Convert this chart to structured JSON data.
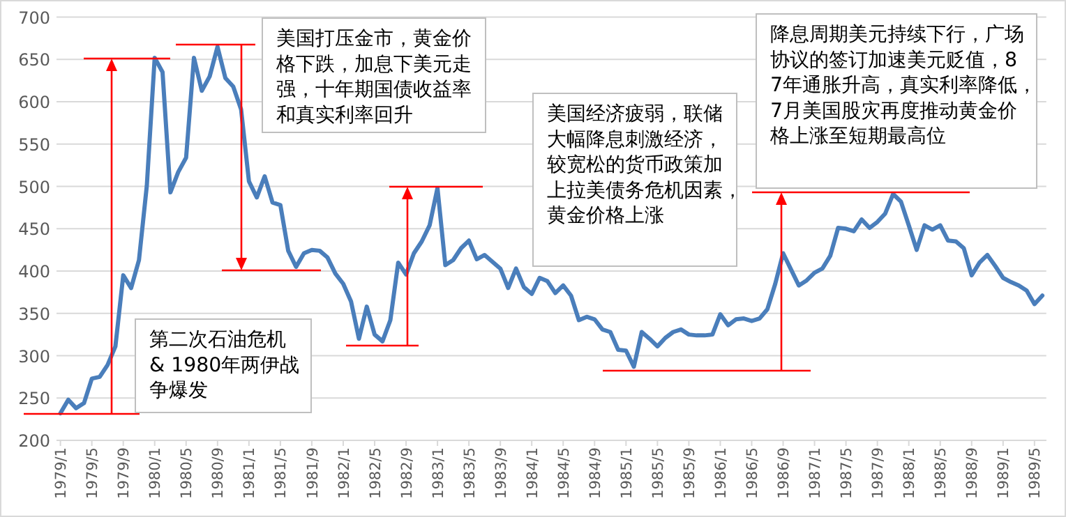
{
  "chart_data": {
    "type": "line",
    "categories": [
      "1979/1",
      null,
      null,
      null,
      "1979/5",
      null,
      null,
      null,
      "1979/9",
      null,
      null,
      null,
      "1980/1",
      null,
      null,
      null,
      "1980/5",
      null,
      null,
      null,
      "1980/9",
      null,
      null,
      null,
      "1981/1",
      null,
      null,
      null,
      "1981/5",
      null,
      null,
      null,
      "1981/9",
      null,
      null,
      null,
      "1982/1",
      null,
      null,
      null,
      "1982/5",
      null,
      null,
      null,
      "1982/9",
      null,
      null,
      null,
      "1983/1",
      null,
      null,
      null,
      "1983/5",
      null,
      null,
      null,
      "1983/9",
      null,
      null,
      null,
      "1984/1",
      null,
      null,
      null,
      "1984/5",
      null,
      null,
      null,
      "1984/9",
      null,
      null,
      null,
      "1985/1",
      null,
      null,
      null,
      "1985/5",
      null,
      null,
      null,
      "1985/9",
      null,
      null,
      null,
      "1986/1",
      null,
      null,
      null,
      "1986/5",
      null,
      null,
      null,
      "1986/9",
      null,
      null,
      null,
      "1987/1",
      null,
      null,
      null,
      "1987/5",
      null,
      null,
      null,
      "1987/9",
      null,
      null,
      null,
      "1988/1",
      null,
      null,
      null,
      "1988/5",
      null,
      null,
      null,
      "1988/9",
      null,
      null,
      null,
      "1989/1",
      null,
      null,
      null,
      "1989/5",
      null
    ],
    "values": [
      232,
      248,
      238,
      244,
      273,
      275,
      289,
      311,
      395,
      380,
      413,
      501,
      652,
      635,
      493,
      517,
      534,
      652,
      613,
      630,
      665,
      628,
      618,
      591,
      506,
      487,
      512,
      481,
      478,
      424,
      405,
      421,
      425,
      424,
      416,
      397,
      385,
      364,
      320,
      358,
      325,
      317,
      342,
      410,
      396,
      421,
      435,
      454,
      498,
      407,
      413,
      427,
      436,
      414,
      419,
      411,
      403,
      380,
      403,
      381,
      373,
      392,
      388,
      374,
      383,
      371,
      342,
      346,
      343,
      331,
      328,
      307,
      306,
      287,
      328,
      320,
      311,
      321,
      328,
      331,
      325,
      324,
      324,
      325,
      349,
      336,
      343,
      344,
      341,
      344,
      355,
      385,
      421,
      402,
      383,
      389,
      398,
      403,
      418,
      451,
      450,
      447,
      461,
      451,
      458,
      468,
      491,
      482,
      454,
      425,
      454,
      449,
      454,
      436,
      435,
      427,
      395,
      410,
      419,
      406,
      392,
      387,
      383,
      377,
      361,
      371
    ],
    "color": "#4a7ebb",
    "ylim": [
      200,
      700
    ],
    "yticks": [
      200,
      250,
      300,
      350,
      400,
      450,
      500,
      550,
      600,
      650,
      700
    ],
    "grid": "y",
    "marker": "none",
    "annotations": [
      "第二次石油危机 & 1980年两伊战争爆发",
      "美国打压金市，黄金价格下跌，加息下美元走强，十年期国债收益率和真实利率回升",
      "美国经济疲弱，联储大幅降息刺激经济，较宽松的货币政策加上拉美债务危机因素，黄金价格上涨",
      "降息周期美元持续下行，广场协议的签订加速美元贬值，87年通胀升高，真实利率降低，7月美国股灾再度推动黄金价格上涨至短期最高位"
    ]
  }
}
